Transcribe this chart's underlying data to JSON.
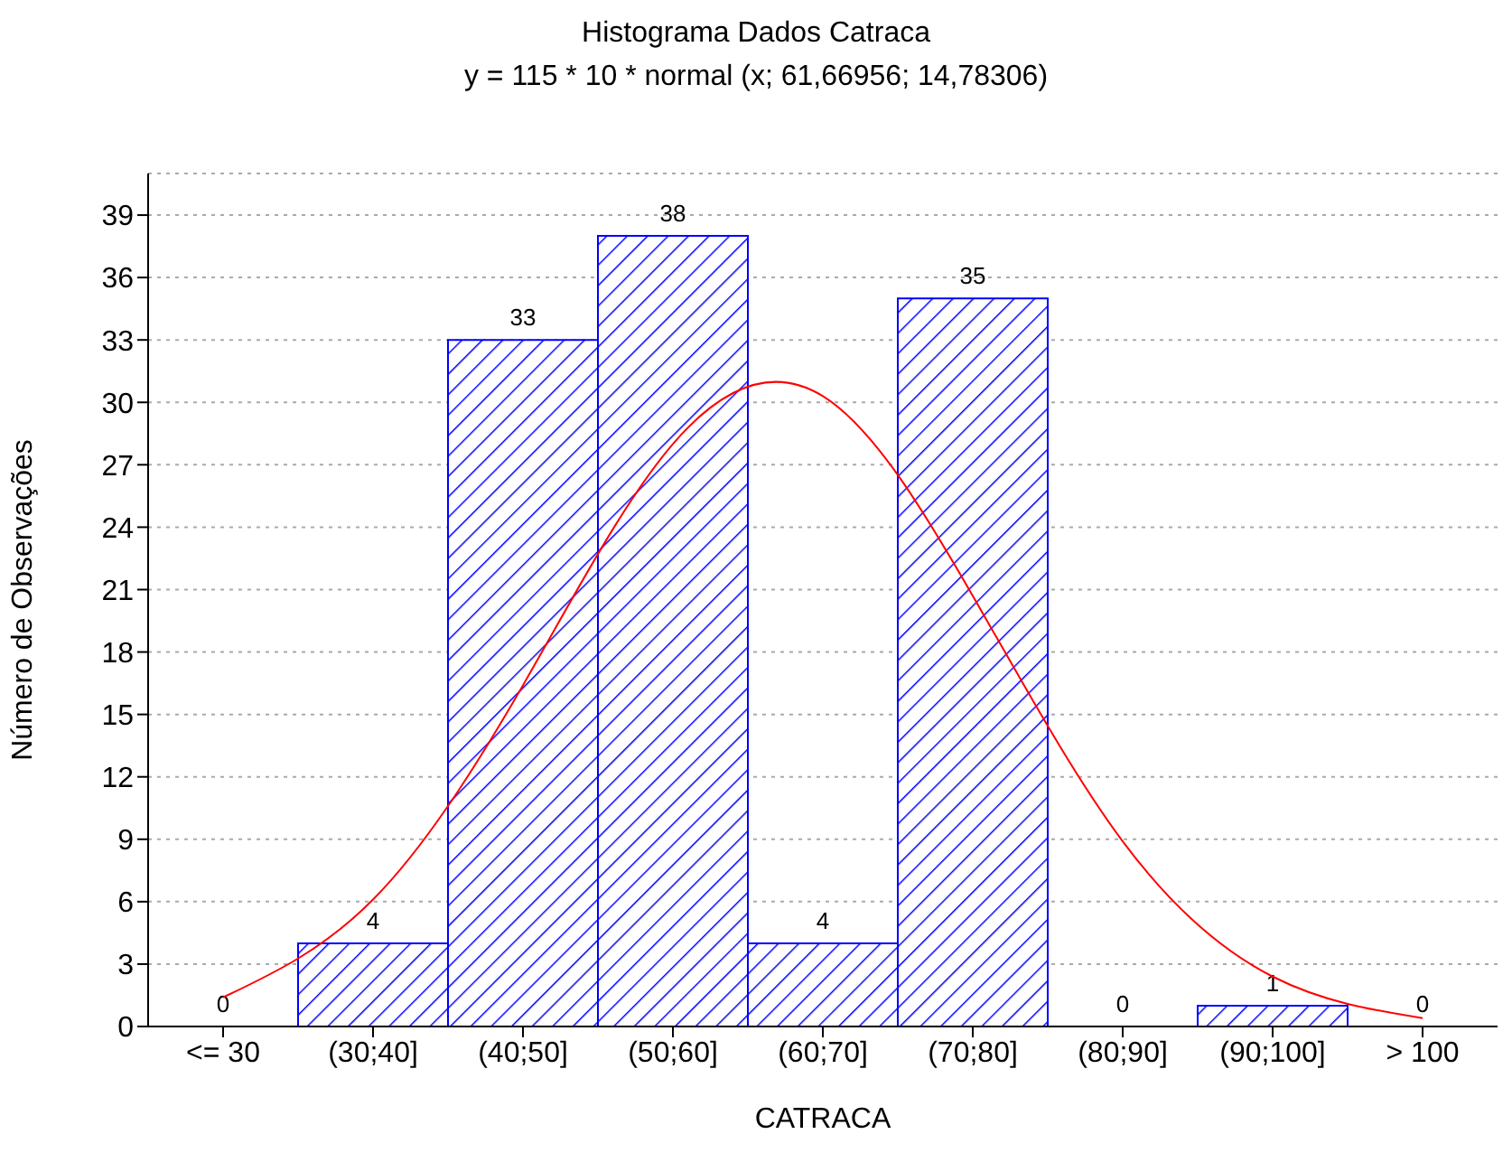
{
  "chart_data": {
    "type": "bar",
    "title": "Histograma Dados Catraca",
    "subtitle": "y = 115 * 10 * normal (x; 61,66956; 14,78306)",
    "xlabel": "CATRACA",
    "ylabel": "Número de Observações",
    "categories": [
      "<= 30",
      "(30;40]",
      "(40;50]",
      "(50;60]",
      "(60;70]",
      "(70;80]",
      "(80;90]",
      "(90;100]",
      "> 100"
    ],
    "series": [
      {
        "type": "bar",
        "color": "#0000ff",
        "values": [
          0,
          4,
          33,
          38,
          4,
          35,
          0,
          1,
          0
        ],
        "value_labels": [
          "0",
          "4",
          "33",
          "38",
          "4",
          "35",
          "0",
          "1",
          "0"
        ]
      },
      {
        "type": "line",
        "color": "#ff0000",
        "values": [
          1.4,
          6.1,
          16.4,
          28,
          30.3,
          20.7,
          8.9,
          2.4,
          0.4
        ]
      }
    ],
    "ylim": [
      0,
      41
    ],
    "yticks": [
      0,
      3,
      6,
      9,
      12,
      15,
      18,
      21,
      24,
      27,
      30,
      33,
      36,
      39
    ],
    "grid": "y"
  }
}
